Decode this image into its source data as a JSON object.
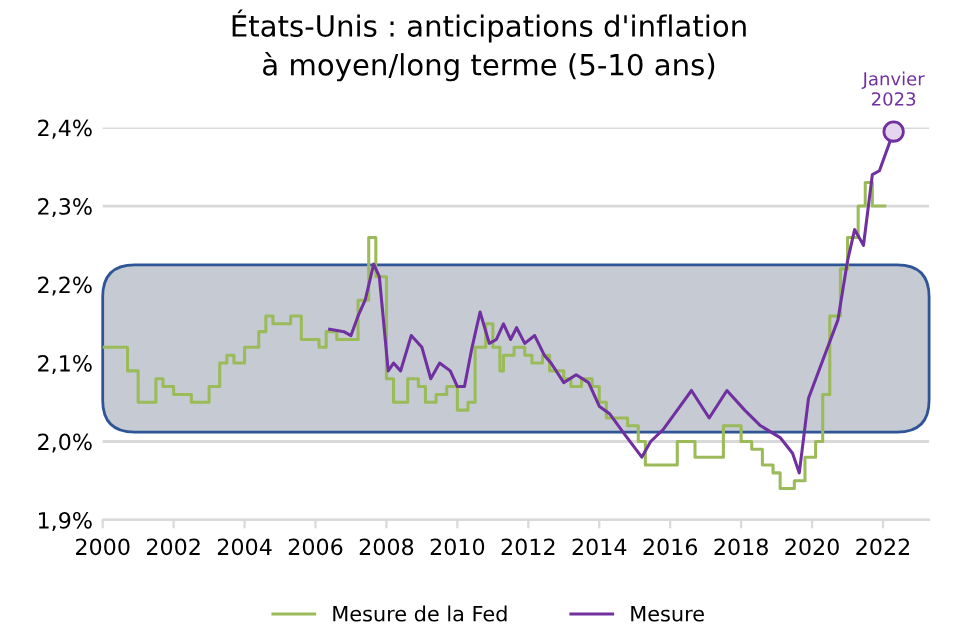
{
  "chart_data": {
    "type": "line",
    "title": "États-Unis : anticipations d'inflation\nà moyen/long terme (5-10 ans)",
    "xlim": [
      2000,
      2023.3
    ],
    "xticks": [
      2000,
      2002,
      2004,
      2006,
      2008,
      2010,
      2012,
      2014,
      2016,
      2018,
      2020,
      2022
    ],
    "ylim": [
      1.9,
      2.4
    ],
    "yticks": [
      {
        "value": 1.9,
        "label": "1,9%"
      },
      {
        "value": 2.0,
        "label": "2,0%"
      },
      {
        "value": 2.1,
        "label": "2,1%"
      },
      {
        "value": 2.2,
        "label": "2,2%"
      },
      {
        "value": 2.3,
        "label": "2,3%"
      },
      {
        "value": 2.4,
        "label": "2,4%"
      }
    ],
    "grid": "y",
    "legend": "bottom",
    "marker": "none",
    "bands": [
      {
        "axis": "y",
        "from": 2.012,
        "to": 2.225,
        "color": "#c5cad3"
      }
    ],
    "annotations": [
      {
        "text": "Janvier\n2023",
        "x": 2022.3,
        "y": 2.395
      }
    ],
    "series": [
      {
        "name": "Mesure de la Fed",
        "type": "step",
        "color": "#9bbb59",
        "x": [
          2000,
          2000.7,
          2001,
          2001.5,
          2001.7,
          2002,
          2002.5,
          2003,
          2003.3,
          2003.5,
          2003.7,
          2004,
          2004.4,
          2004.6,
          2004.8,
          2005.3,
          2005.6,
          2006.1,
          2006.3,
          2006.6,
          2006.8,
          2007.2,
          2007.5,
          2007.7,
          2008.0,
          2008.2,
          2008.6,
          2008.9,
          2009.1,
          2009.4,
          2009.7,
          2010.0,
          2010.3,
          2010.5,
          2010.8,
          2011.0,
          2011.2,
          2011.3,
          2011.6,
          2011.9,
          2012.1,
          2012.4,
          2012.6,
          2013.0,
          2013.2,
          2013.5,
          2013.8,
          2014.0,
          2014.2,
          2014.8,
          2015.1,
          2015.3,
          2016.2,
          2016.7,
          2017.5,
          2018.0,
          2018.3,
          2018.6,
          2018.9,
          2019.1,
          2019.5,
          2019.8,
          2020.1,
          2020.3,
          2020.5,
          2020.8,
          2021.0,
          2021.3,
          2021.5,
          2021.7,
          2022.05
        ],
        "values": [
          2.12,
          2.09,
          2.05,
          2.08,
          2.07,
          2.06,
          2.05,
          2.07,
          2.1,
          2.11,
          2.1,
          2.12,
          2.14,
          2.16,
          2.15,
          2.16,
          2.13,
          2.12,
          2.14,
          2.13,
          2.13,
          2.18,
          2.26,
          2.21,
          2.08,
          2.05,
          2.08,
          2.07,
          2.05,
          2.06,
          2.07,
          2.04,
          2.05,
          2.12,
          2.15,
          2.12,
          2.09,
          2.11,
          2.12,
          2.11,
          2.1,
          2.11,
          2.09,
          2.08,
          2.07,
          2.08,
          2.07,
          2.05,
          2.03,
          2.02,
          2.0,
          1.97,
          2.0,
          1.98,
          2.02,
          2.0,
          1.99,
          1.97,
          1.96,
          1.94,
          1.95,
          1.98,
          2.0,
          2.06,
          2.16,
          2.22,
          2.26,
          2.3,
          2.33,
          2.3,
          2.3
        ]
      },
      {
        "name": "Mesure",
        "color": "#7030a0",
        "x": [
          2006.4,
          2006.8,
          2007.0,
          2007.2,
          2007.4,
          2007.64,
          2007.8,
          2008.05,
          2008.2,
          2008.4,
          2008.7,
          2009.0,
          2009.25,
          2009.5,
          2009.8,
          2010.0,
          2010.2,
          2010.4,
          2010.64,
          2010.9,
          2011.1,
          2011.3,
          2011.5,
          2011.67,
          2011.9,
          2012.18,
          2012.45,
          2012.64,
          2013.0,
          2013.35,
          2013.7,
          2014.0,
          2014.3,
          2014.7,
          2015.2,
          2015.45,
          2015.8,
          2016.2,
          2016.6,
          2017.1,
          2017.6,
          2018.1,
          2018.55,
          2019.1,
          2019.45,
          2019.64,
          2019.9,
          2020.73,
          2021.0,
          2021.2,
          2021.45,
          2021.7,
          2021.9,
          2022.3
        ],
        "values": [
          2.143,
          2.14,
          2.135,
          2.16,
          2.18,
          2.226,
          2.21,
          2.09,
          2.1,
          2.09,
          2.135,
          2.12,
          2.08,
          2.1,
          2.09,
          2.07,
          2.07,
          2.117,
          2.165,
          2.125,
          2.13,
          2.15,
          2.13,
          2.145,
          2.125,
          2.135,
          2.11,
          2.1,
          2.075,
          2.085,
          2.075,
          2.045,
          2.035,
          2.01,
          1.98,
          2.0,
          2.015,
          2.04,
          2.065,
          2.03,
          2.065,
          2.04,
          2.02,
          2.005,
          1.985,
          1.96,
          2.055,
          2.155,
          2.23,
          2.27,
          2.25,
          2.34,
          2.345,
          2.395
        ]
      }
    ]
  }
}
